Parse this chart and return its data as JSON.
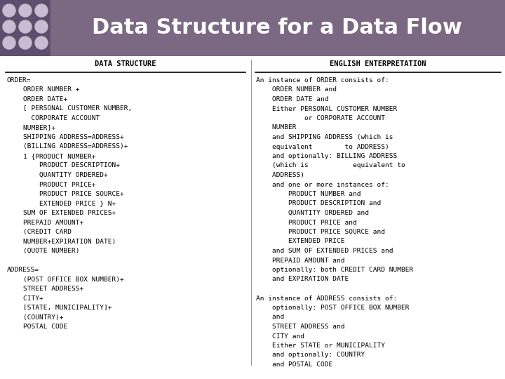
{
  "title": "Data Structure for a Data Flow",
  "title_bg": "#7B6882",
  "title_color": "#FFFFFF",
  "dot_bg": "#5E4E6E",
  "dot_color": "#C8BDD0",
  "col1_header": "DATA STRUCTURE",
  "col2_header": "ENGLISH ENTERPRETATION",
  "col1_lines": [
    "ORDER=",
    "    ORDER NUMBER +",
    "    ORDER DATE+",
    "    [ PERSONAL CUSTOMER NUMBER,",
    "      CORPORATE ACCOUNT",
    "    NUMBER]+",
    "    SHIPPING ADDRESS=ADDRESS+",
    "    (BILLING ADDRESS=ADDRESS)+",
    "    1 {PRODUCT NUMBER+",
    "        PRODUCT DESCRIPTION+",
    "        QUANTITY ORDERED+",
    "        PRODUCT PRICE+",
    "        PRODUCT PRICE SOURCE+",
    "        EXTENDED PRICE } N+",
    "    SUM OF EXTENDED PRICES+",
    "    PREPAID AMOUNT+",
    "    (CREDIT CARD",
    "    NUMBER+EXPIRATION DATE)",
    "    (QUOTE NUMBER)",
    "",
    "ADDRESS=",
    "    (POST OFFICE BOX NUMBER)+",
    "    STREET ADDRESS+",
    "    CITY+",
    "    [STATE, MUNICIPALITY]+",
    "    (COUNTRY)+",
    "    POSTAL CODE"
  ],
  "col2_lines": [
    "An instance of ORDER consists of:",
    "    ORDER NUMBER and",
    "    ORDER DATE and",
    "    Either PERSONAL CUSTOMER NUMBER",
    "            or CORPORATE ACCOUNT",
    "    NUMBER",
    "    and SHIPPING ADDRESS (which is",
    "    equivalent        to ADDRESS)",
    "    and optionally: BILLING ADDRESS",
    "    (which is           equivalent to",
    "    ADDRESS)",
    "    and one or more instances of:",
    "        PRODUCT NUMBER and",
    "        PRODUCT DESCRIPTION and",
    "        QUANTITY ORDERED and",
    "        PRODUCT PRICE and",
    "        PRODUCT PRICE SOURCE and",
    "        EXTENDED PRICE",
    "    and SUM OF EXTENDED PRICES and",
    "    PREPAID AMOUNT and",
    "    optionally: both CREDIT CARD NUMBER",
    "    and EXPIRATION DATE",
    "",
    "An instance of ADDRESS consists of:",
    "    optionally: POST OFFICE BOX NUMBER",
    "    and",
    "    STREET ADDRESS and",
    "    CITY and",
    "    Either STATE or MUNICIPALITY",
    "    and optionally: COUNTRY",
    "    and POSTAL CODE"
  ],
  "header_fontsize": 7.5,
  "body_fontsize": 6.8,
  "title_fontsize": 22
}
